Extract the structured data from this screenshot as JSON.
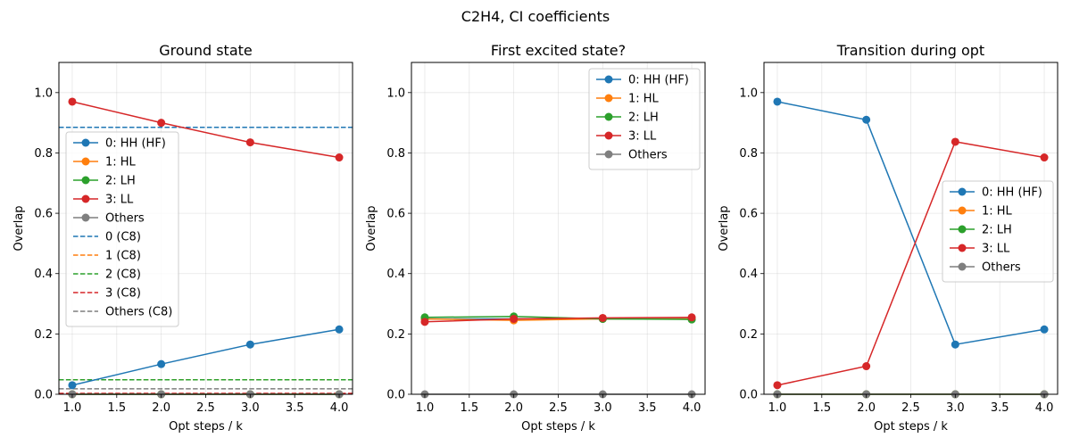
{
  "figure_title": "C2H4, CI coefficients",
  "colors": {
    "HH": "#1f77b4",
    "HL": "#ff7f0e",
    "LH": "#2ca02c",
    "LL": "#d62728",
    "Others": "#7f7f7f"
  },
  "chart_data": [
    {
      "type": "line",
      "title": "Ground state",
      "xlabel": "Opt steps / k",
      "ylabel": "Overlap",
      "xlim": [
        0.85,
        4.15
      ],
      "ylim": [
        0,
        1.1
      ],
      "xticks": [
        "1.0",
        "1.5",
        "2.0",
        "2.5",
        "3.0",
        "3.5",
        "4.0"
      ],
      "yticks": [
        "0.0",
        "0.2",
        "0.4",
        "0.6",
        "0.8",
        "1.0"
      ],
      "grid": true,
      "legend_location": "center-left",
      "x": [
        1,
        2,
        3,
        4
      ],
      "series": [
        {
          "name": "0: HH (HF)",
          "color": "#1f77b4",
          "values": [
            0.03,
            0.1,
            0.165,
            0.215
          ]
        },
        {
          "name": "1: HL",
          "color": "#ff7f0e",
          "values": [
            0.0,
            0.0,
            0.0,
            0.0
          ]
        },
        {
          "name": "2: LH",
          "color": "#2ca02c",
          "values": [
            0.0,
            0.0,
            0.0,
            0.0
          ]
        },
        {
          "name": "3: LL",
          "color": "#d62728",
          "values": [
            0.97,
            0.9,
            0.835,
            0.785
          ]
        },
        {
          "name": "Others",
          "color": "#7f7f7f",
          "values": [
            0.0,
            0.0,
            0.0,
            0.0
          ]
        }
      ],
      "reference_lines": [
        {
          "name": "0 (C8)",
          "color": "#1f77b4",
          "value": 0.885
        },
        {
          "name": "1 (C8)",
          "color": "#ff7f0e",
          "value": 0.048
        },
        {
          "name": "2 (C8)",
          "color": "#2ca02c",
          "value": 0.048
        },
        {
          "name": "3 (C8)",
          "color": "#d62728",
          "value": 0.003
        },
        {
          "name": "Others (C8)",
          "color": "#7f7f7f",
          "value": 0.018
        }
      ]
    },
    {
      "type": "line",
      "title": "First excited state?",
      "xlabel": "Opt steps / k",
      "ylabel": "Overlap",
      "xlim": [
        0.85,
        4.15
      ],
      "ylim": [
        0,
        1.1
      ],
      "xticks": [
        "1.0",
        "1.5",
        "2.0",
        "2.5",
        "3.0",
        "3.5",
        "4.0"
      ],
      "yticks": [
        "0.0",
        "0.2",
        "0.4",
        "0.6",
        "0.8",
        "1.0"
      ],
      "grid": true,
      "legend_location": "top-right",
      "x": [
        1,
        2,
        3,
        4
      ],
      "series": [
        {
          "name": "0: HH (HF)",
          "color": "#1f77b4",
          "values": [
            0.25,
            0.25,
            0.25,
            0.25
          ]
        },
        {
          "name": "1: HL",
          "color": "#ff7f0e",
          "values": [
            0.25,
            0.245,
            0.25,
            0.25
          ]
        },
        {
          "name": "2: LH",
          "color": "#2ca02c",
          "values": [
            0.255,
            0.258,
            0.25,
            0.248
          ]
        },
        {
          "name": "3: LL",
          "color": "#d62728",
          "values": [
            0.24,
            0.25,
            0.253,
            0.255
          ]
        },
        {
          "name": "Others",
          "color": "#7f7f7f",
          "values": [
            0.0,
            0.0,
            0.0,
            0.0
          ]
        }
      ],
      "reference_lines": []
    },
    {
      "type": "line",
      "title": "Transition during opt",
      "xlabel": "Opt steps / k",
      "ylabel": "Overlap",
      "xlim": [
        0.85,
        4.15
      ],
      "ylim": [
        0,
        1.1
      ],
      "xticks": [
        "1.0",
        "1.5",
        "2.0",
        "2.5",
        "3.0",
        "3.5",
        "4.0"
      ],
      "yticks": [
        "0.0",
        "0.2",
        "0.4",
        "0.6",
        "0.8",
        "1.0"
      ],
      "grid": true,
      "legend_location": "center-right",
      "x": [
        1,
        2,
        3,
        4
      ],
      "series": [
        {
          "name": "0: HH (HF)",
          "color": "#1f77b4",
          "values": [
            0.97,
            0.91,
            0.165,
            0.215
          ]
        },
        {
          "name": "1: HL",
          "color": "#ff7f0e",
          "values": [
            0.0,
            0.0,
            0.0,
            0.0
          ]
        },
        {
          "name": "2: LH",
          "color": "#2ca02c",
          "values": [
            0.0,
            0.0,
            0.0,
            0.0
          ]
        },
        {
          "name": "3: LL",
          "color": "#d62728",
          "values": [
            0.03,
            0.093,
            0.837,
            0.785
          ]
        },
        {
          "name": "Others",
          "color": "#7f7f7f",
          "values": [
            0.0,
            0.0,
            0.0,
            0.0
          ]
        }
      ],
      "reference_lines": []
    }
  ]
}
